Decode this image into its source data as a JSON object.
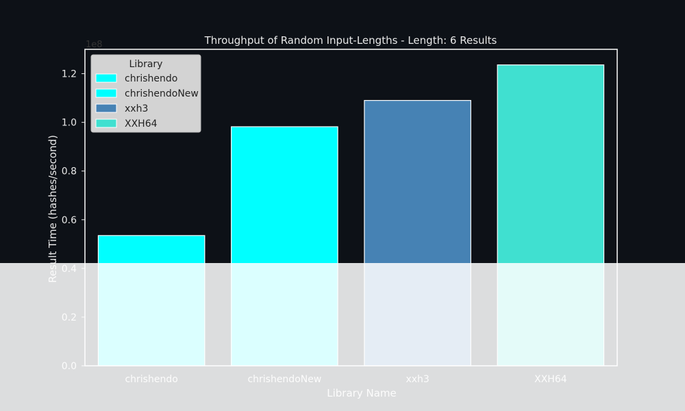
{
  "chart_data": {
    "type": "bar",
    "title": "Throughput of Random Input-Lengths - Length: 6 Results",
    "xlabel": "Library Name",
    "ylabel": "Result Time (hashes/second)",
    "y_scale_label": "1e8",
    "categories": [
      "chrishendo",
      "chrishendoNew",
      "xxh3",
      "XXH64"
    ],
    "values": [
      53500000,
      98200000,
      109000000,
      123600000
    ],
    "ylim": [
      0,
      130000000
    ],
    "yticks": [
      0,
      20000000,
      40000000,
      60000000,
      80000000,
      100000000,
      120000000
    ],
    "ytick_labels": [
      "0.0",
      "0.2",
      "0.4",
      "0.6",
      "0.8",
      "1.0",
      "1.2"
    ],
    "colors": [
      "#00ffff",
      "#00ffff",
      "#4682b4",
      "#40e0d0"
    ],
    "grid": false,
    "legend": {
      "title": "Library",
      "placement": "top-left",
      "entries": [
        "chrishendo",
        "chrishendoNew",
        "xxh3",
        "XXH64"
      ]
    },
    "background": "#0d1117",
    "foreground": "#e8e8e8"
  }
}
